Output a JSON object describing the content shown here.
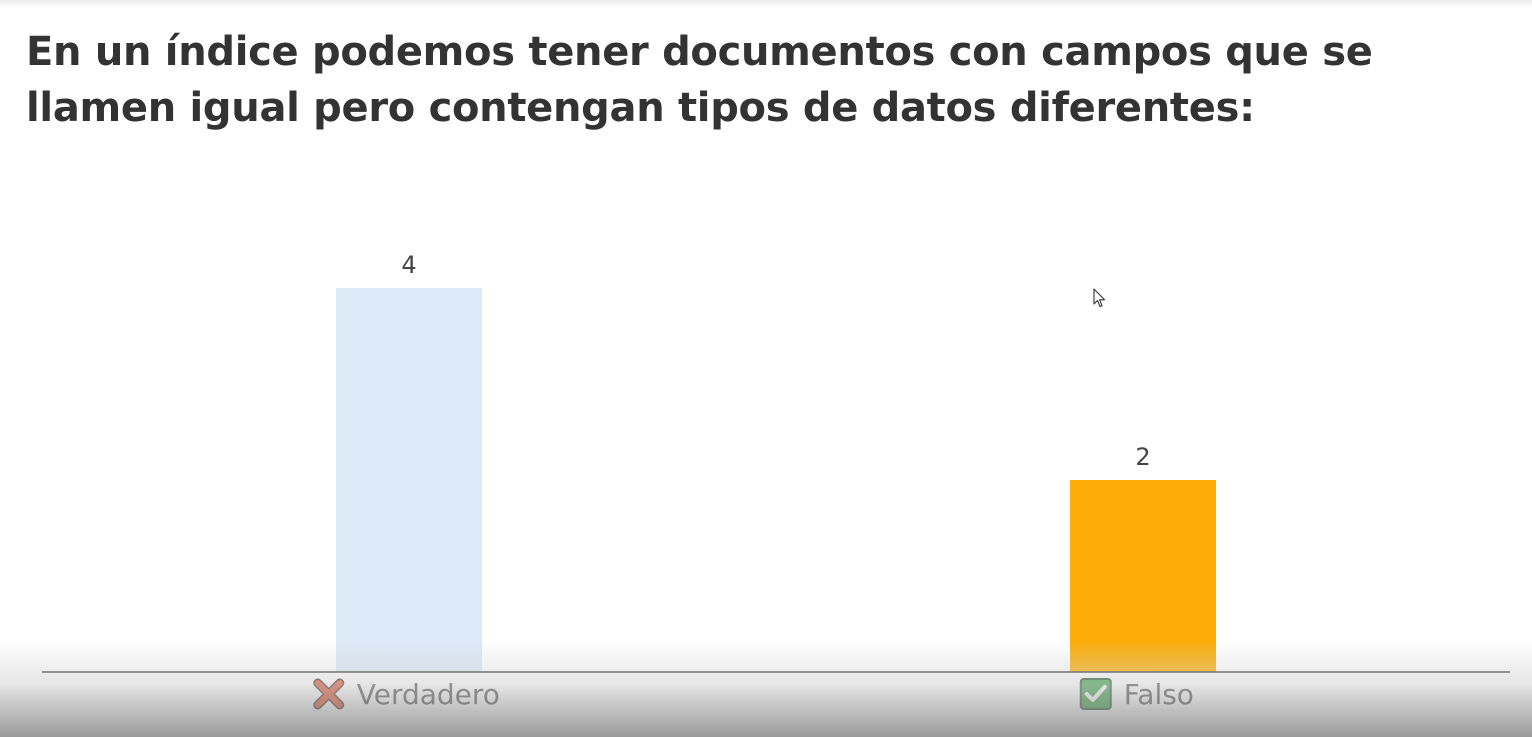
{
  "question": {
    "text": "En un índice podemos tener documentos con campos que se llamen igual pero contengan tipos de datos diferentes:"
  },
  "chart_data": {
    "type": "bar",
    "categories": [
      "Verdadero",
      "Falso"
    ],
    "values": [
      4,
      2
    ],
    "category_icons": [
      "cross-mark-icon",
      "check-mark-icon"
    ],
    "bar_colors": [
      "#dce9f6",
      "#fcad07"
    ],
    "ylim": [
      0,
      4
    ],
    "grid": false,
    "legend": "none"
  },
  "colors": {
    "title_text": "#333333",
    "label_text": "#444444",
    "axis_line": "#333333",
    "cross_icon": "#d9461f",
    "check_icon": "#2e9a3a"
  }
}
